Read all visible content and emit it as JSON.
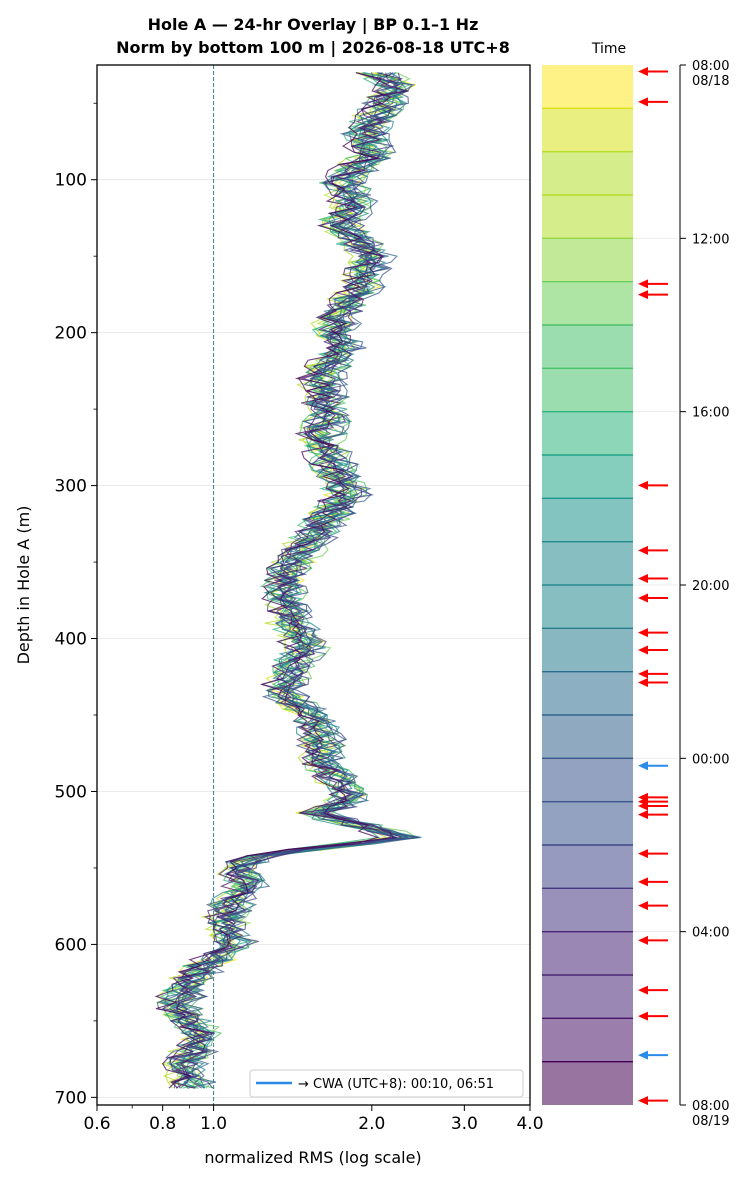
{
  "chart_data": {
    "type": "line",
    "title_line1": "Hole A — 24-hr Overlay  |  BP 0.1–1 Hz",
    "title_line2": "Norm by bottom 100 m  |  2026-08-18 UTC+8",
    "xlabel": "normalized RMS  (log scale)",
    "ylabel": "Depth in Hole A (m)",
    "x_scale": "log",
    "xlim": [
      0.6,
      4.0
    ],
    "ylim": [
      705,
      25
    ],
    "x_ticks": [
      {
        "v": 0.6,
        "label": "0.6"
      },
      {
        "v": 0.8,
        "label": "0.8"
      },
      {
        "v": 1.0,
        "label": "1.0"
      },
      {
        "v": 2.0,
        "label": "2.0"
      },
      {
        "v": 3.0,
        "label": "3.0"
      },
      {
        "v": 4.0,
        "label": "4.0"
      }
    ],
    "y_ticks": [
      {
        "v": 100,
        "label": "100"
      },
      {
        "v": 200,
        "label": "200"
      },
      {
        "v": 300,
        "label": "300"
      },
      {
        "v": 400,
        "label": "400"
      },
      {
        "v": 500,
        "label": "500"
      },
      {
        "v": 600,
        "label": "600"
      },
      {
        "v": 700,
        "label": "700"
      }
    ],
    "reference_line_x": 1.0,
    "grid": "horizontal",
    "profile": [
      [
        30,
        2.05
      ],
      [
        40,
        2.25
      ],
      [
        55,
        2.05
      ],
      [
        70,
        1.95
      ],
      [
        85,
        2.0
      ],
      [
        100,
        1.75
      ],
      [
        115,
        1.85
      ],
      [
        130,
        1.75
      ],
      [
        150,
        2.0
      ],
      [
        170,
        1.9
      ],
      [
        190,
        1.7
      ],
      [
        210,
        1.75
      ],
      [
        230,
        1.6
      ],
      [
        250,
        1.65
      ],
      [
        270,
        1.6
      ],
      [
        290,
        1.7
      ],
      [
        305,
        1.8
      ],
      [
        320,
        1.65
      ],
      [
        340,
        1.5
      ],
      [
        355,
        1.4
      ],
      [
        370,
        1.35
      ],
      [
        390,
        1.4
      ],
      [
        405,
        1.5
      ],
      [
        420,
        1.4
      ],
      [
        437,
        1.35
      ],
      [
        450,
        1.55
      ],
      [
        465,
        1.6
      ],
      [
        480,
        1.6
      ],
      [
        495,
        1.75
      ],
      [
        505,
        1.8
      ],
      [
        515,
        1.55
      ],
      [
        530,
        2.3
      ],
      [
        540,
        1.3
      ],
      [
        548,
        1.1
      ],
      [
        560,
        1.15
      ],
      [
        580,
        1.05
      ],
      [
        600,
        1.1
      ],
      [
        620,
        0.92
      ],
      [
        640,
        0.85
      ],
      [
        660,
        0.95
      ],
      [
        680,
        0.88
      ],
      [
        695,
        0.92
      ]
    ],
    "n_traces": 24,
    "colors": [
      "#fde725",
      "#d8e219",
      "#b5de2b",
      "#8fd744",
      "#6ccd5a",
      "#4ac16d",
      "#2fb47c",
      "#20a486",
      "#1f948c",
      "#23888e",
      "#287c8e",
      "#2d708e",
      "#33638d",
      "#39568c",
      "#3f4788",
      "#453781",
      "#482576",
      "#481467",
      "#440154"
    ],
    "time_axis_label": "Time",
    "time_ticks": [
      {
        "h": 0,
        "label": "08:00",
        "label2": "08/18"
      },
      {
        "h": 4,
        "label": "12:00",
        "label2": ""
      },
      {
        "h": 8,
        "label": "16:00",
        "label2": ""
      },
      {
        "h": 12,
        "label": "20:00",
        "label2": ""
      },
      {
        "h": 16,
        "label": "00:00",
        "label2": ""
      },
      {
        "h": 20,
        "label": "04:00",
        "label2": ""
      },
      {
        "h": 24,
        "label": "08:00",
        "label2": "08/19"
      }
    ],
    "event_markers_red_hours": [
      0.15,
      0.85,
      5.05,
      5.3,
      9.7,
      11.2,
      11.85,
      12.3,
      13.1,
      13.5,
      14.05,
      14.25,
      16.9,
      17.0,
      17.1,
      17.3,
      18.2,
      18.85,
      19.4,
      20.2,
      21.35,
      21.95,
      23.9
    ],
    "event_markers_blue_hours": [
      16.17,
      22.85
    ],
    "legend_text": "→ CWA (UTC+8): 00:10, 06:51",
    "legend_color": "#2b8ce8"
  }
}
